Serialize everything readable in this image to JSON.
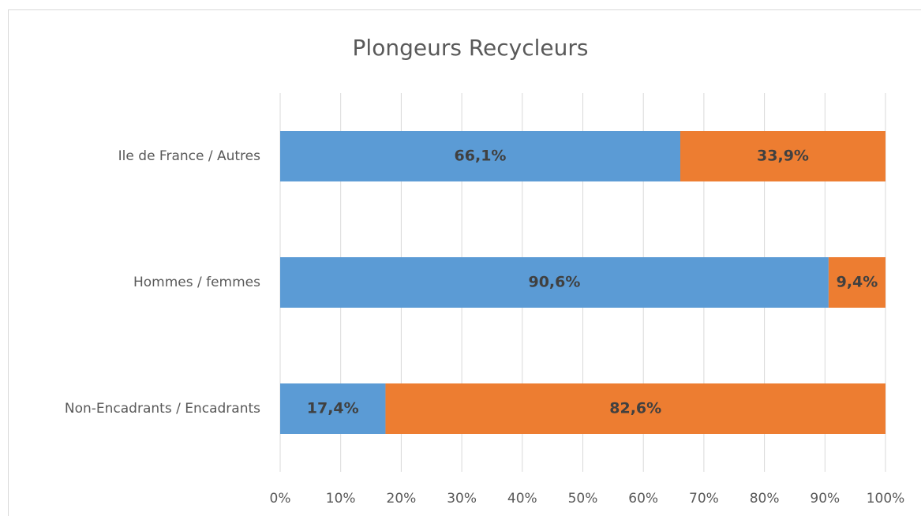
{
  "chart_data": {
    "type": "stacked_barh",
    "title": "Plongeurs Recycleurs",
    "categories": [
      "Ile de France / Autres",
      "Hommes / femmes",
      "Non-Encadrants / Encadrants"
    ],
    "series": [
      {
        "color": "#5b9bd5",
        "values": [
          66.1,
          90.6,
          17.4
        ],
        "value_labels": [
          "66,1%",
          "90,6%",
          "17,4%"
        ]
      },
      {
        "color": "#ed7d31",
        "values": [
          33.9,
          9.4,
          82.6
        ],
        "value_labels": [
          "33,9%",
          "9,4%",
          "82,6%"
        ]
      }
    ],
    "xlim": [
      0,
      100
    ],
    "xticks": [
      {
        "value": 0,
        "label": "0%"
      },
      {
        "value": 10,
        "label": "10%"
      },
      {
        "value": 20,
        "label": "20%"
      },
      {
        "value": 30,
        "label": "30%"
      },
      {
        "value": 40,
        "label": "40%"
      },
      {
        "value": 50,
        "label": "50%"
      },
      {
        "value": 60,
        "label": "60%"
      },
      {
        "value": 70,
        "label": "70%"
      },
      {
        "value": 80,
        "label": "80%"
      },
      {
        "value": 90,
        "label": "90%"
      },
      {
        "value": 100,
        "label": "100%"
      }
    ],
    "grid": true
  }
}
